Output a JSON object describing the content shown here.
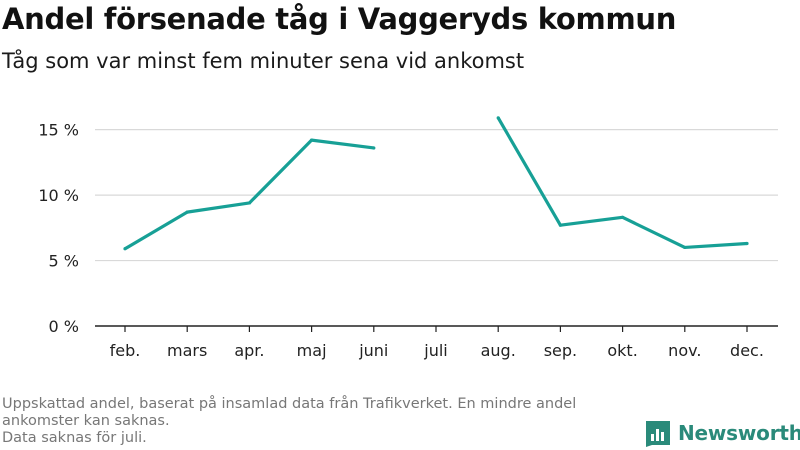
{
  "title": "Andel försenade tåg i Vaggeryds kommun",
  "subtitle": "Tåg som var minst fem minuter sena vid ankomst",
  "footnote": {
    "line1": "Uppskattad andel, baserat på insamlad data från Trafikverket. En mindre andel",
    "line2": "ankomster kan saknas.",
    "line3": "Data saknas för juli."
  },
  "brand": {
    "name": "Newsworthy",
    "logo_icon": "bar-chart-logo-icon",
    "color": "#2a8a7a"
  },
  "colors": {
    "line": "#17a096",
    "grid": "#d9d9d9",
    "axis": "#222222"
  },
  "chart_data": {
    "type": "line",
    "title": "Andel försenade tåg i Vaggeryds kommun",
    "subtitle": "Tåg som var minst fem minuter sena vid ankomst",
    "xlabel": "",
    "ylabel": "",
    "categories": [
      "feb.",
      "mars",
      "apr.",
      "maj",
      "juni",
      "juli",
      "aug.",
      "sep.",
      "okt.",
      "nov.",
      "dec."
    ],
    "series": [
      {
        "values": [
          5.9,
          8.7,
          9.4,
          14.2,
          13.6,
          null,
          15.9,
          7.7,
          8.3,
          6.0,
          6.3
        ]
      }
    ],
    "yticks": [
      0,
      5,
      10,
      15
    ],
    "ytick_labels": [
      "0 %",
      "5 %",
      "10 %",
      "15 %"
    ],
    "ylim": [
      0,
      16.5
    ],
    "grid": true,
    "legend": "none"
  }
}
